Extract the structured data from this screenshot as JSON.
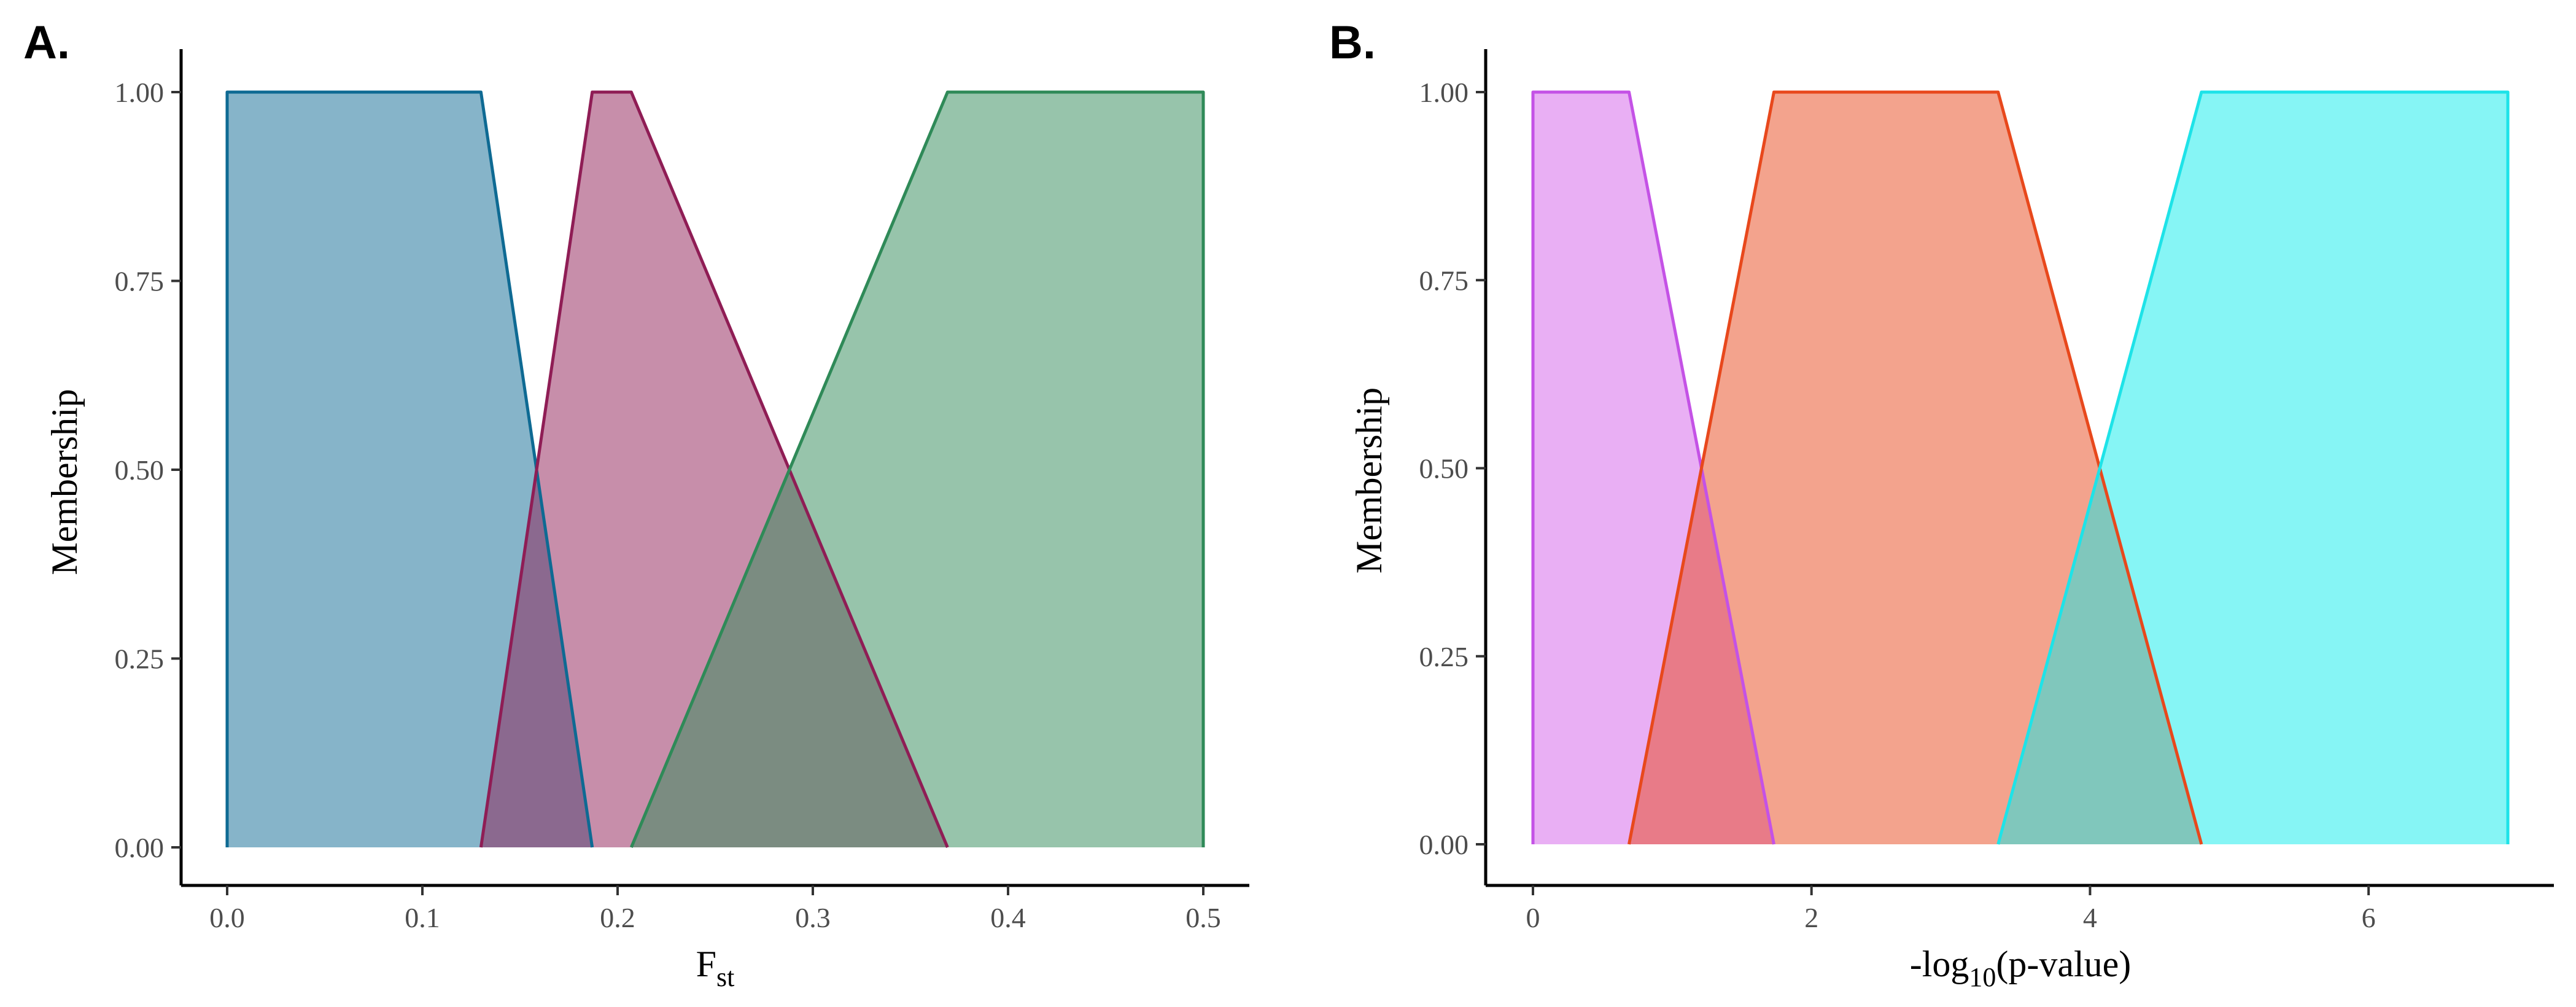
{
  "chart_data": [
    {
      "panel_label": "A.",
      "type": "area",
      "ylabel": "Membership",
      "xlabel": {
        "main": "F",
        "sub": "st",
        "tail": ""
      },
      "xlim": [
        0,
        0.5
      ],
      "ylim": [
        0,
        1
      ],
      "x_ticks": [
        0.0,
        0.1,
        0.2,
        0.3,
        0.4,
        0.5
      ],
      "x_tick_labels": [
        "0.0",
        "0.1",
        "0.2",
        "0.3",
        "0.4",
        "0.5"
      ],
      "y_ticks": [
        0,
        0.25,
        0.5,
        0.75,
        1.0
      ],
      "y_tick_labels": [
        "0.00",
        "0.25",
        "0.50",
        "0.75",
        "1.00"
      ],
      "grid": false,
      "legend": "none",
      "series": [
        {
          "x": [
            0.0,
            0.0,
            0.13,
            0.187
          ],
          "y": [
            0,
            1,
            1,
            0
          ],
          "fill": "#0e6a93",
          "stroke": "#0e6a93"
        },
        {
          "x": [
            0.13,
            0.187,
            0.207,
            0.369
          ],
          "y": [
            0,
            1,
            1,
            0
          ],
          "fill": "#8f1d55",
          "stroke": "#8f1d55"
        },
        {
          "x": [
            0.207,
            0.369,
            0.5,
            0.5
          ],
          "y": [
            0,
            1,
            1,
            0
          ],
          "fill": "#2f8a58",
          "stroke": "#2f8a58"
        }
      ]
    },
    {
      "panel_label": "B.",
      "type": "area",
      "ylabel": "Membership",
      "xlabel": {
        "main": "-log",
        "sub": "10",
        "tail": "(p-value)"
      },
      "xlim": [
        0,
        7
      ],
      "ylim": [
        0,
        1
      ],
      "x_ticks": [
        0,
        2,
        4,
        6
      ],
      "x_tick_labels": [
        "0",
        "2",
        "4",
        "6"
      ],
      "y_ticks": [
        0,
        0.25,
        0.5,
        0.75,
        1.0
      ],
      "y_tick_labels": [
        "0.00",
        "0.25",
        "0.50",
        "0.75",
        "1.00"
      ],
      "grid": false,
      "legend": "none",
      "series": [
        {
          "x": [
            0.0,
            0.0,
            0.69,
            1.73
          ],
          "y": [
            0,
            1,
            1,
            0
          ],
          "fill": "#d35fea",
          "stroke": "#c452e6"
        },
        {
          "x": [
            0.69,
            1.73,
            3.34,
            4.8
          ],
          "y": [
            0,
            1,
            1,
            0
          ],
          "fill": "#e8481c",
          "stroke": "#e8481c"
        },
        {
          "x": [
            3.34,
            4.8,
            7.0,
            7.0
          ],
          "y": [
            0,
            1,
            1,
            0
          ],
          "fill": "#0deceb",
          "stroke": "#1ee3e8"
        }
      ]
    }
  ]
}
